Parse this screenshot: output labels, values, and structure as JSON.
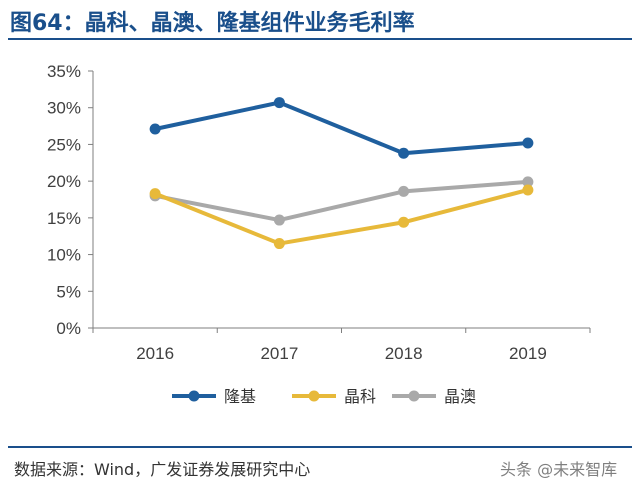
{
  "title": "图64：晶科、晶澳、隆基组件业务毛利率",
  "source": "数据来源：Wind，广发证券发展研究中心",
  "watermark": "头条 @未来智库",
  "chart_data": {
    "type": "line",
    "title": "晶科、晶澳、隆基组件业务毛利率",
    "xlabel": "",
    "ylabel": "",
    "categories": [
      "2016",
      "2017",
      "2018",
      "2019"
    ],
    "ylim": [
      0,
      35
    ],
    "yticks": [
      0,
      5,
      10,
      15,
      20,
      25,
      30,
      35
    ],
    "ytick_labels": [
      "0%",
      "5%",
      "10%",
      "15%",
      "20%",
      "25%",
      "30%",
      "35%"
    ],
    "grid": false,
    "legend_position": "bottom",
    "series": [
      {
        "name": "隆基",
        "color": "#1f5f9e",
        "values": [
          27.1,
          30.7,
          23.8,
          25.2
        ]
      },
      {
        "name": "晶科",
        "color": "#e7b93a",
        "values": [
          18.3,
          11.5,
          14.4,
          18.8
        ]
      },
      {
        "name": "晶澳",
        "color": "#a9a9a9",
        "values": [
          18.0,
          14.7,
          18.6,
          19.9
        ]
      }
    ]
  }
}
